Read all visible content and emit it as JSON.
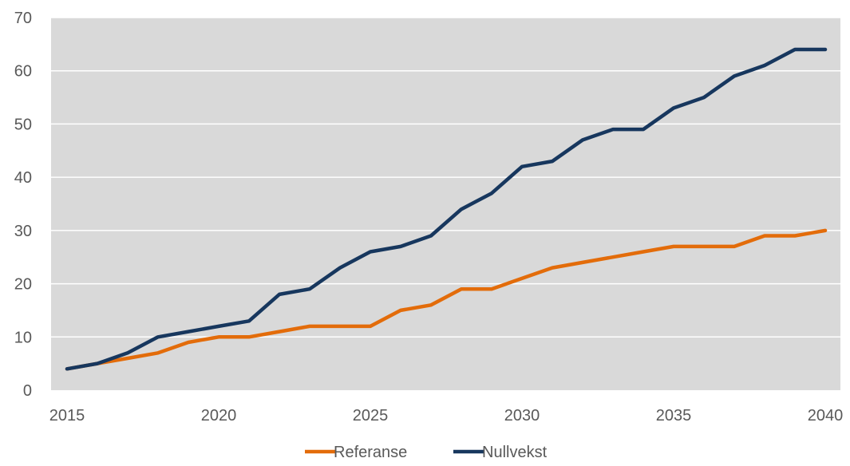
{
  "chart_data": {
    "type": "line",
    "title": "",
    "xlabel": "",
    "ylabel": "",
    "x": [
      2015,
      2016,
      2017,
      2018,
      2019,
      2020,
      2021,
      2022,
      2023,
      2024,
      2025,
      2026,
      2027,
      2028,
      2029,
      2030,
      2031,
      2032,
      2033,
      2034,
      2035,
      2036,
      2037,
      2038,
      2039,
      2040
    ],
    "xlim": [
      2015,
      2040
    ],
    "ylim": [
      0,
      70
    ],
    "x_ticks": [
      "2015",
      "2020",
      "2025",
      "2030",
      "2035",
      "2040"
    ],
    "x_tick_values": [
      2015,
      2020,
      2025,
      2030,
      2035,
      2040
    ],
    "y_ticks": [
      "0",
      "10",
      "20",
      "30",
      "40",
      "50",
      "60",
      "70"
    ],
    "y_tick_values": [
      0,
      10,
      20,
      30,
      40,
      50,
      60,
      70
    ],
    "grid": "horizontal",
    "legend_position": "bottom",
    "plot_background": "#d9d9d9",
    "series": [
      {
        "name": "Referanse",
        "color": "#e36c0a",
        "values": [
          4,
          5,
          6,
          7,
          9,
          10,
          10,
          11,
          12,
          12,
          12,
          15,
          16,
          19,
          19,
          21,
          23,
          24,
          25,
          26,
          27,
          27,
          27,
          29,
          29,
          30
        ]
      },
      {
        "name": "Nullvekst",
        "color": "#17375e",
        "values": [
          4,
          5,
          7,
          10,
          11,
          12,
          13,
          18,
          19,
          23,
          26,
          27,
          29,
          34,
          37,
          42,
          43,
          47,
          49,
          49,
          53,
          55,
          59,
          61,
          64,
          64
        ]
      }
    ]
  }
}
